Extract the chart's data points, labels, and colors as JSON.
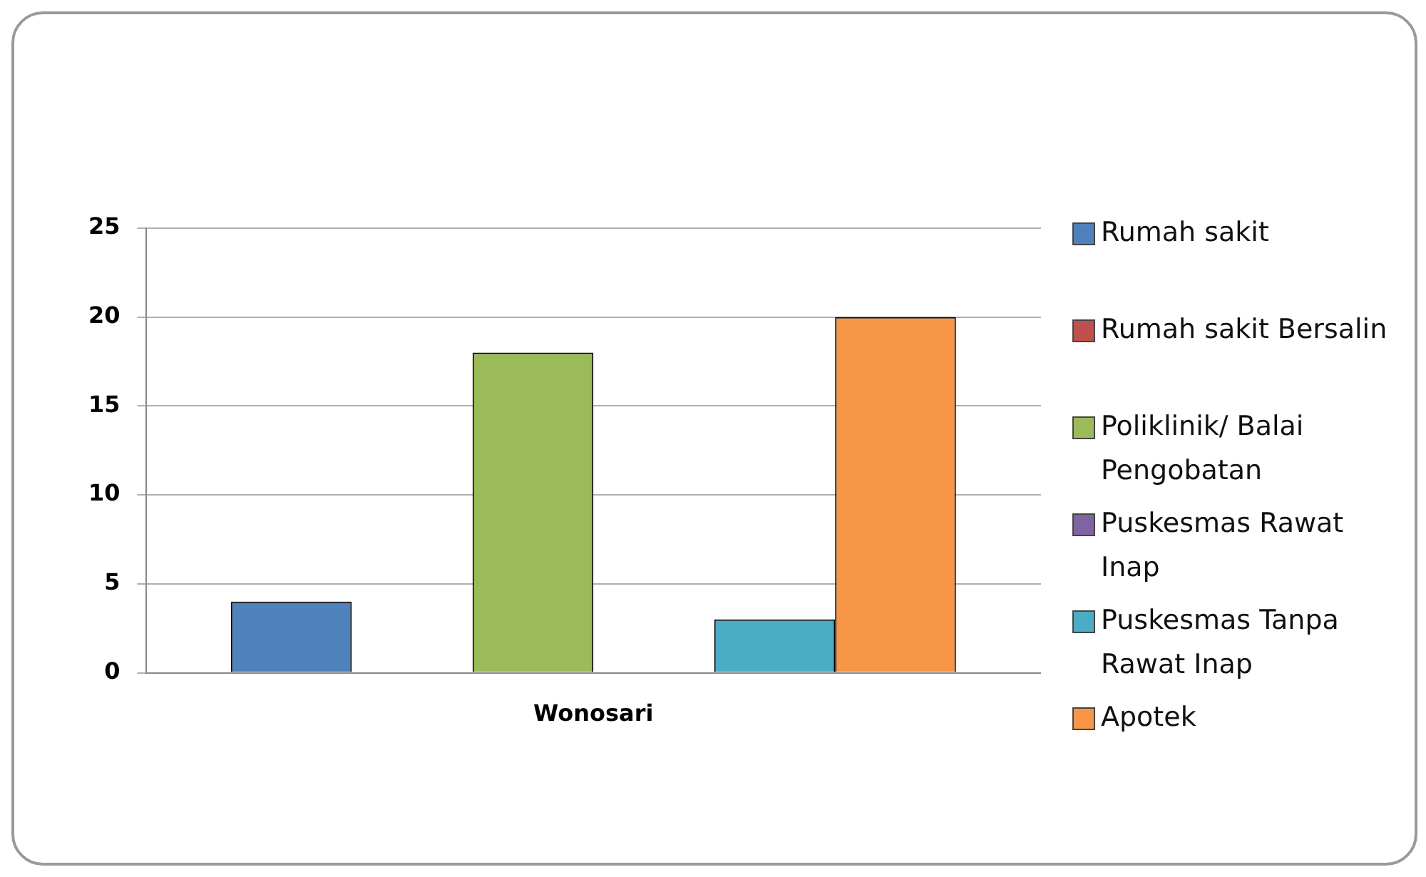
{
  "chart_data": {
    "type": "bar",
    "categories": [
      "Wonosari"
    ],
    "series": [
      {
        "name": "Rumah sakit",
        "color": "#4f81bd",
        "values": [
          4
        ]
      },
      {
        "name": "Rumah sakit Bersalin",
        "color": "#c0504d",
        "values": [
          0
        ]
      },
      {
        "name": "Poliklinik/ Balai Pengobatan",
        "color": "#9bbb59",
        "values": [
          18
        ]
      },
      {
        "name": "Puskesmas Rawat Inap",
        "color": "#8064a2",
        "values": [
          0
        ]
      },
      {
        "name": "Puskesmas Tanpa Rawat Inap",
        "color": "#4bacc6",
        "values": [
          3
        ]
      },
      {
        "name": "Apotek",
        "color": "#f79646",
        "values": [
          20
        ]
      }
    ],
    "ylim": [
      0,
      25
    ],
    "yticks": [
      0,
      5,
      10,
      15,
      20,
      25
    ],
    "grid": "y",
    "legend": "right"
  }
}
